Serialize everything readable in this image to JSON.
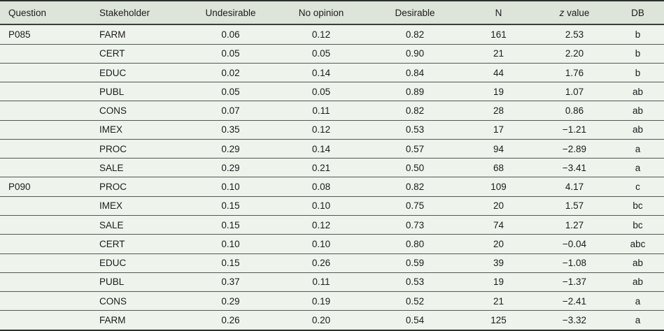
{
  "colors": {
    "row_bg": "#eef3ec",
    "header_bg": "#dde4da",
    "rule_heavy": "#2c302c",
    "rule_mid": "#3a3f3a",
    "rule_light": "#535853",
    "text": "#1c1c1c"
  },
  "table": {
    "columns": [
      {
        "id": "question",
        "align": "left",
        "label": "Question",
        "label_parts": [
          {
            "text": "Question",
            "italic": false
          }
        ]
      },
      {
        "id": "stakeholder",
        "align": "left",
        "label": "Stakeholder",
        "label_parts": [
          {
            "text": "Stakeholder",
            "italic": false
          }
        ]
      },
      {
        "id": "undesirable",
        "align": "center",
        "label": "Undesirable",
        "label_parts": [
          {
            "text": "Undesirable",
            "italic": false
          }
        ]
      },
      {
        "id": "no_opinion",
        "align": "center",
        "label": "No opinion",
        "label_parts": [
          {
            "text": "No opinion",
            "italic": false
          }
        ]
      },
      {
        "id": "desirable",
        "align": "center",
        "label": "Desirable",
        "label_parts": [
          {
            "text": "Desirable",
            "italic": false
          }
        ]
      },
      {
        "id": "n",
        "align": "center",
        "label": "N",
        "label_parts": [
          {
            "text": "N",
            "italic": false
          }
        ]
      },
      {
        "id": "z_value",
        "align": "center",
        "label": "z value",
        "label_parts": [
          {
            "text": "z",
            "italic": true
          },
          {
            "text": " value",
            "italic": false
          }
        ]
      },
      {
        "id": "db",
        "align": "center",
        "label": "DB",
        "label_parts": [
          {
            "text": "DB",
            "italic": false
          }
        ]
      }
    ],
    "rows": [
      {
        "question": "P085",
        "stakeholder": "FARM",
        "undesirable": "0.06",
        "no_opinion": "0.12",
        "desirable": "0.82",
        "n": "161",
        "z_value": "2.53",
        "db": "b"
      },
      {
        "question": "",
        "stakeholder": "CERT",
        "undesirable": "0.05",
        "no_opinion": "0.05",
        "desirable": "0.90",
        "n": "21",
        "z_value": "2.20",
        "db": "b"
      },
      {
        "question": "",
        "stakeholder": "EDUC",
        "undesirable": "0.02",
        "no_opinion": "0.14",
        "desirable": "0.84",
        "n": "44",
        "z_value": "1.76",
        "db": "b"
      },
      {
        "question": "",
        "stakeholder": "PUBL",
        "undesirable": "0.05",
        "no_opinion": "0.05",
        "desirable": "0.89",
        "n": "19",
        "z_value": "1.07",
        "db": "ab"
      },
      {
        "question": "",
        "stakeholder": "CONS",
        "undesirable": "0.07",
        "no_opinion": "0.11",
        "desirable": "0.82",
        "n": "28",
        "z_value": "0.86",
        "db": "ab"
      },
      {
        "question": "",
        "stakeholder": "IMEX",
        "undesirable": "0.35",
        "no_opinion": "0.12",
        "desirable": "0.53",
        "n": "17",
        "z_value": "−1.21",
        "db": "ab"
      },
      {
        "question": "",
        "stakeholder": "PROC",
        "undesirable": "0.29",
        "no_opinion": "0.14",
        "desirable": "0.57",
        "n": "94",
        "z_value": "−2.89",
        "db": "a"
      },
      {
        "question": "",
        "stakeholder": "SALE",
        "undesirable": "0.29",
        "no_opinion": "0.21",
        "desirable": "0.50",
        "n": "68",
        "z_value": "−3.41",
        "db": "a"
      },
      {
        "question": "P090",
        "stakeholder": "PROC",
        "undesirable": "0.10",
        "no_opinion": "0.08",
        "desirable": "0.82",
        "n": "109",
        "z_value": "4.17",
        "db": "c"
      },
      {
        "question": "",
        "stakeholder": "IMEX",
        "undesirable": "0.15",
        "no_opinion": "0.10",
        "desirable": "0.75",
        "n": "20",
        "z_value": "1.57",
        "db": "bc"
      },
      {
        "question": "",
        "stakeholder": "SALE",
        "undesirable": "0.15",
        "no_opinion": "0.12",
        "desirable": "0.73",
        "n": "74",
        "z_value": "1.27",
        "db": "bc"
      },
      {
        "question": "",
        "stakeholder": "CERT",
        "undesirable": "0.10",
        "no_opinion": "0.10",
        "desirable": "0.80",
        "n": "20",
        "z_value": "−0.04",
        "db": "abc"
      },
      {
        "question": "",
        "stakeholder": "EDUC",
        "undesirable": "0.15",
        "no_opinion": "0.26",
        "desirable": "0.59",
        "n": "39",
        "z_value": "−1.08",
        "db": "ab"
      },
      {
        "question": "",
        "stakeholder": "PUBL",
        "undesirable": "0.37",
        "no_opinion": "0.11",
        "desirable": "0.53",
        "n": "19",
        "z_value": "−1.37",
        "db": "ab"
      },
      {
        "question": "",
        "stakeholder": "CONS",
        "undesirable": "0.29",
        "no_opinion": "0.19",
        "desirable": "0.52",
        "n": "21",
        "z_value": "−2.41",
        "db": "a"
      },
      {
        "question": "",
        "stakeholder": "FARM",
        "undesirable": "0.26",
        "no_opinion": "0.20",
        "desirable": "0.54",
        "n": "125",
        "z_value": "−3.32",
        "db": "a"
      }
    ]
  }
}
